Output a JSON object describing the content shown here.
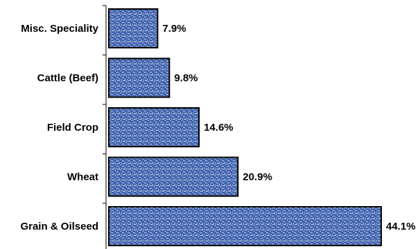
{
  "chart_data": {
    "type": "bar",
    "orientation": "horizontal",
    "categories": [
      "Misc. Speciality",
      "Cattle (Beef)",
      "Field Crop",
      "Wheat",
      "Grain & Oilseed"
    ],
    "values": [
      7.9,
      9.8,
      14.6,
      20.9,
      44.1
    ],
    "value_labels": [
      "7.9%",
      "9.8%",
      "14.6%",
      "20.9%",
      "44.1%"
    ],
    "title": "",
    "xlabel": "",
    "ylabel": "",
    "xlim": [
      0,
      44.1
    ],
    "grid": false,
    "legend": "none",
    "bar_color": "#4a6bb3",
    "bar_texture_color": "#c7d4ee",
    "bar_border_color": "#000000"
  }
}
